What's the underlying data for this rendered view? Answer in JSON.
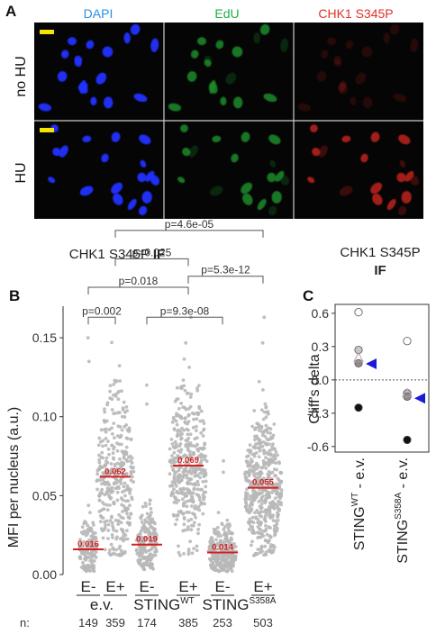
{
  "panel_a": {
    "letter": "A",
    "channels": [
      {
        "name": "DAPI",
        "color": "#2a8fe6"
      },
      {
        "name": "EdU",
        "color": "#1fae4b"
      },
      {
        "name": "CHK1 S345P",
        "color": "#e0302a"
      }
    ],
    "rows": [
      "no HU",
      "HU"
    ]
  },
  "panel_b": {
    "letter": "B",
    "heading": "CHK1 S345P",
    "heading_bold": "IF",
    "chart_data": {
      "type": "scatter",
      "ylabel": "MFI per nucleus (a.u.)",
      "ylim": [
        0,
        0.17
      ],
      "yticks": [
        0.0,
        0.05,
        0.1,
        0.15
      ],
      "ytick_labels": [
        "0.00",
        "0.05",
        "0.10",
        "0.15"
      ],
      "groups": [
        {
          "edu": "E-",
          "construct": "e.v.",
          "n": 149,
          "median": 0.016,
          "median_label": "0.016",
          "min": 0.002,
          "max": 0.15,
          "spread": 0.45
        },
        {
          "edu": "E+",
          "construct": "e.v.",
          "n": 359,
          "median": 0.062,
          "median_label": "0.062",
          "min": 0.012,
          "max": 0.147,
          "spread": 0.95
        },
        {
          "edu": "E-",
          "construct": "STING_WT",
          "n": 174,
          "median": 0.019,
          "median_label": "0.019",
          "min": 0.003,
          "max": 0.12,
          "spread": 0.55
        },
        {
          "edu": "E+",
          "construct": "STING_WT",
          "n": 385,
          "median": 0.069,
          "median_label": "0.069",
          "min": 0.012,
          "max": 0.163,
          "spread": 0.95
        },
        {
          "edu": "E-",
          "construct": "STING_S358A",
          "n": 253,
          "median": 0.014,
          "median_label": "0.014",
          "min": 0.002,
          "max": 0.072,
          "spread": 0.7
        },
        {
          "edu": "E+",
          "construct": "STING_S358A",
          "n": 503,
          "median": 0.055,
          "median_label": "0.055",
          "min": 0.012,
          "max": 0.163,
          "spread": 0.95
        }
      ],
      "construct_labels": [
        {
          "base": "e.v.",
          "sup": ""
        },
        {
          "base": "STING",
          "sup": "WT"
        },
        {
          "base": "STING",
          "sup": "S358A"
        }
      ],
      "n_prefix": "n:",
      "comparisons": [
        {
          "from": 0,
          "to": 1,
          "label": "p=0.002",
          "y": 0.163
        },
        {
          "from": 0,
          "to": 3,
          "label": "p=0.018",
          "y": 0.182
        },
        {
          "from": 2,
          "to": 4,
          "label": "p=9.3e-08",
          "y": 0.163
        },
        {
          "from": 1,
          "to": 3,
          "label": "p=0.025",
          "y": 0.2
        },
        {
          "from": 3,
          "to": 5,
          "label": "p=5.3e-12",
          "y": 0.189
        },
        {
          "from": 1,
          "to": 5,
          "label": "p=4.6e-05",
          "y": 0.218
        }
      ],
      "median_color": "#d42020",
      "point_color": "#b8b8b8"
    }
  },
  "panel_c": {
    "letter": "C",
    "heading": "CHK1 S345P",
    "heading_bold": "IF",
    "chart_data": {
      "type": "scatter",
      "ylabel": "Cliff's delta",
      "ylim": [
        -0.65,
        0.68
      ],
      "yticks": [
        -0.6,
        -0.3,
        0.0,
        0.3,
        0.6
      ],
      "ytick_labels": [
        "-0.6",
        "-0.3",
        "0.0",
        "0.3",
        "0.6"
      ],
      "reference_line": 0.0,
      "categories": [
        {
          "base": "STING",
          "sup": "WT",
          "suffix": " - e.v."
        },
        {
          "base": "STING",
          "sup": "S358A",
          "suffix": " - e.v."
        }
      ],
      "series": [
        {
          "category": 0,
          "points": [
            {
              "y": 0.61,
              "fill": "#ffffff"
            },
            {
              "y": 0.27,
              "fill": "#c8c8c8"
            },
            {
              "y": 0.15,
              "fill": "#8c8c8c"
            },
            {
              "y": -0.25,
              "fill": "#111111"
            }
          ],
          "mean_triangle": 0.2,
          "summary": 0.145
        },
        {
          "category": 1,
          "points": [
            {
              "y": 0.35,
              "fill": "#ffffff"
            },
            {
              "y": -0.12,
              "fill": "#c8c8c8"
            },
            {
              "y": -0.15,
              "fill": "#8c8c8c"
            },
            {
              "y": -0.54,
              "fill": "#111111"
            }
          ],
          "mean_triangle": -0.12,
          "summary": -0.165
        }
      ],
      "summary_color": "#1a1ad8"
    }
  }
}
